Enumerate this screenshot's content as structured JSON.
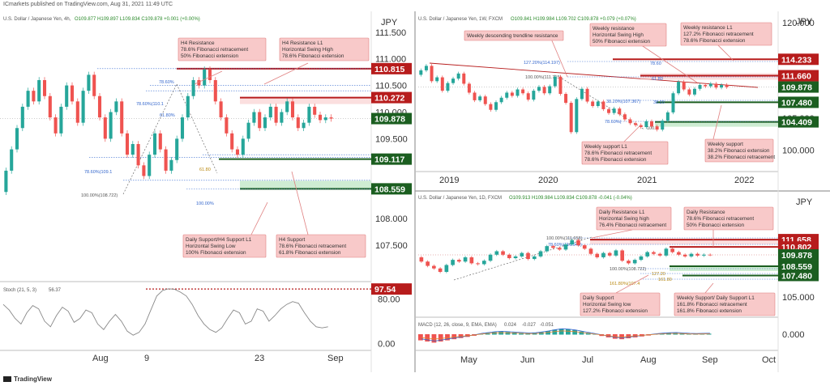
{
  "header": {
    "publisher": "ICmarkets published on TradingView.com, Aug 31, 2021 11:49 UTC"
  },
  "footer": {
    "brand": "TradingView"
  },
  "colors": {
    "resistance": "#b71c1c",
    "support": "#1b5e20",
    "price": "#1b5e20",
    "bull": "#26a69a",
    "bear": "#ef5350",
    "note_bg": "#f8c9c9",
    "note_border": "#e08080",
    "fib_line": "#3d6fd1"
  },
  "chart_data": [
    {
      "id": "h4",
      "type": "line",
      "title": "U.S. Dollar / Japanese Yen, 4h,",
      "ohlc": "O109.877  H109.897  L109.834  C109.878  +0.001 (+0.00%)",
      "currency": "JPY",
      "y_ticks": [
        "111.500",
        "111.000",
        "110.500",
        "110.000",
        "109.500",
        "108.000",
        "107.500"
      ],
      "x_ticks": [
        "Aug",
        "9",
        "23",
        "Sep"
      ],
      "ylim": [
        107.0,
        111.8
      ],
      "price": {
        "value": 109.878,
        "label": "109.878"
      },
      "levels": [
        {
          "value": 110.815,
          "label": "110.815",
          "kind": "resistance"
        },
        {
          "value": 110.272,
          "label": "110.272",
          "kind": "resistance"
        },
        {
          "value": 109.117,
          "label": "109.117",
          "kind": "support"
        },
        {
          "value": 108.559,
          "label": "108.559",
          "kind": "support"
        }
      ],
      "fib_labels": [
        "78.60%",
        "78.60%(110.1",
        "61.80%",
        "78.60%(109.1",
        "61.80",
        "100.00%(108.722)",
        "100.00%"
      ],
      "annotations": [
        {
          "lines": [
            "H4 Resistance",
            "78.6% Fibonacci retracement",
            "50% Fibonacci extension"
          ]
        },
        {
          "lines": [
            "H4 Resistance L1",
            "Horizontal Swing High",
            "78.6% Fibonacci extension"
          ]
        },
        {
          "lines": [
            "Daily Support/H4 Support L1",
            "Horizontal Swing Low",
            "100% Fibonacci extension"
          ]
        },
        {
          "lines": [
            "H4 Support",
            "78.6% Fibonacci retracement",
            "61.8% Fibonacci extension"
          ]
        }
      ],
      "close_series": [
        108.9,
        109.3,
        109.7,
        110.1,
        110.4,
        110.2,
        110.6,
        110.3,
        109.9,
        109.6,
        110.1,
        110.5,
        110.2,
        109.8,
        110.4,
        110.7,
        110.3,
        109.9,
        109.5,
        110.0,
        110.2,
        109.6,
        109.2,
        109.4,
        109.0,
        108.8,
        109.2,
        109.6,
        109.3,
        108.9,
        109.1,
        109.5,
        109.9,
        110.3,
        110.6,
        110.5,
        110.8,
        110.6,
        110.2,
        109.9,
        109.6,
        109.3,
        109.2,
        109.5,
        109.8,
        110.0,
        109.7,
        109.9,
        110.1,
        109.8,
        110.0,
        110.2,
        109.9,
        109.7,
        109.8,
        110.1,
        109.95,
        109.85,
        109.9,
        109.878
      ]
    },
    {
      "id": "stoch",
      "type": "line",
      "title": "Stoch (21, 5, 3)",
      "value_label": "56.37",
      "y_ticks": [
        "80.00",
        "0.00"
      ],
      "level": {
        "value": 97.54,
        "label": "97.54"
      },
      "ylim": [
        -5,
        105
      ],
      "values": [
        70,
        60,
        45,
        35,
        55,
        68,
        62,
        40,
        30,
        50,
        65,
        58,
        38,
        45,
        60,
        55,
        35,
        25,
        40,
        52,
        40,
        22,
        15,
        20,
        35,
        60,
        85,
        95,
        98,
        97,
        92,
        85,
        70,
        50,
        35,
        25,
        20,
        28,
        45,
        60,
        55,
        35,
        40,
        62,
        58,
        40,
        50,
        62,
        70,
        75,
        72,
        55,
        40,
        30,
        28,
        30
      ]
    },
    {
      "id": "weekly",
      "type": "line",
      "title": "U.S. Dollar / Japanese Yen, 1W, FXCM",
      "ohlc": "O109.841  H109.984  L109.702  C109.878  +0.079 (+0.07%)",
      "currency": "JPY",
      "y_ticks": [
        "120.000",
        "110.000",
        "105.000",
        "100.000"
      ],
      "x_ticks": [
        "2019",
        "2020",
        "2021",
        "2022"
      ],
      "ylim": [
        97.5,
        121.0
      ],
      "price": {
        "value": 109.878,
        "label": "109.878"
      },
      "levels": [
        {
          "value": 114.233,
          "label": "114.233",
          "kind": "resistance"
        },
        {
          "value": 111.66,
          "label": "111.660",
          "kind": "resistance"
        },
        {
          "value": 107.48,
          "label": "107.480",
          "kind": "support"
        },
        {
          "value": 104.409,
          "label": "104.409",
          "kind": "support"
        }
      ],
      "fib_labels": [
        "127.20%(114.197)",
        "100.00%(111.715)",
        "78.60",
        "61.80",
        "38.20%(107.367)",
        "38.20",
        "78.60%(",
        "100.0"
      ],
      "annotations": [
        {
          "lines": [
            "Weekly descending trendline resistance"
          ]
        },
        {
          "lines": [
            "Weekly resistance",
            "Horizontal Swing High",
            "50% Fibonacci extension"
          ]
        },
        {
          "lines": [
            "Weekly resistance L1",
            "127.2% Fibonacci retracement",
            "78.6% Fibonacci extension"
          ]
        },
        {
          "lines": [
            "Weekly support L1",
            "78.6% Fibonacci retracement",
            "78.6% Fibonacci extension"
          ]
        },
        {
          "lines": [
            "Weekly support",
            "38.2% Fibonacci extension",
            "38.2% Fibonacci retracement"
          ]
        }
      ],
      "close_series": [
        112.5,
        113.2,
        110.8,
        111.4,
        109.3,
        110.5,
        111.2,
        112.0,
        110.4,
        109.0,
        107.8,
        108.4,
        107.2,
        106.3,
        107.5,
        108.2,
        109.0,
        108.5,
        109.5,
        108.9,
        107.9,
        109.3,
        109.9,
        108.9,
        110.0,
        111.5,
        108.8,
        107.4,
        102.8,
        108.0,
        109.6,
        107.6,
        106.9,
        107.6,
        106.4,
        105.8,
        106.5,
        105.6,
        104.8,
        104.2,
        103.9,
        103.6,
        104.5,
        103.7,
        103.2,
        104.6,
        105.9,
        108.9,
        110.7,
        109.5,
        108.7,
        109.6,
        110.2,
        110.0,
        110.4,
        109.8,
        110.2,
        109.878
      ]
    },
    {
      "id": "daily",
      "type": "line",
      "title": "U.S. Dollar / Japanese Yen, 1D, FXCM",
      "ohlc": "O109.913  H109.984  L109.834  C109.878  -0.041 (-0.04%)",
      "currency": "JPY",
      "y_ticks": [
        "110.000",
        "105.000"
      ],
      "x_ticks": [
        "May",
        "Jun",
        "Jul",
        "Aug",
        "Sep",
        "Oct"
      ],
      "ylim": [
        103.0,
        116.0
      ],
      "price": {
        "value": 109.878,
        "label": "109.878"
      },
      "levels": [
        {
          "value": 111.658,
          "label": "111.658",
          "kind": "resistance"
        },
        {
          "value": 110.802,
          "label": "110.802",
          "kind": "resistance"
        },
        {
          "value": 108.559,
          "label": "108.559",
          "kind": "support"
        },
        {
          "value": 107.48,
          "label": "107.480",
          "kind": "support"
        }
      ],
      "fib_labels": [
        "100.00%(111.658)",
        "78.60%(110.946)",
        "100.00%(108.722)",
        "127.20",
        "161.80",
        "161.80%(107.4"
      ],
      "annotations": [
        {
          "lines": [
            "Daily Resistance L1",
            "Horizontal Swing high",
            "76.4% Fibonacci retracement"
          ]
        },
        {
          "lines": [
            "Daily Resistance",
            "78.6% Fibonacci retracement",
            "50% Fibonacci extension"
          ]
        },
        {
          "lines": [
            "Daily Support",
            "Horizontal Swing low",
            "127.2% Fibonacci extension"
          ]
        },
        {
          "lines": [
            "Weekly Support/ Daily Support L1",
            "161.8% Fibonacci retracement",
            "161.8% Fibonacci extension"
          ]
        }
      ],
      "close_series": [
        109.1,
        108.6,
        108.3,
        107.9,
        108.7,
        109.3,
        109.1,
        109.6,
        108.9,
        108.8,
        109.2,
        109.9,
        110.3,
        109.9,
        109.5,
        109.7,
        110.1,
        109.4,
        109.7,
        110.3,
        110.9,
        110.7,
        110.5,
        111.1,
        111.6,
        111.0,
        110.6,
        110.0,
        109.6,
        110.1,
        109.8,
        110.4,
        109.2,
        108.9,
        109.3,
        109.7,
        110.2,
        110.0,
        109.8,
        110.6,
        110.2,
        109.9,
        109.7,
        110.0,
        109.8,
        109.9,
        109.878
      ]
    },
    {
      "id": "macd",
      "type": "bar",
      "title": "MACD (12, 26, close, 9, EMA, EMA)",
      "value_labels": [
        "0.024",
        "-0.027",
        "-0.051"
      ],
      "y_ticks": [
        "0.000"
      ],
      "ylim": [
        -0.6,
        0.6
      ],
      "hist": [
        -0.25,
        -0.3,
        -0.35,
        -0.3,
        -0.25,
        -0.2,
        -0.15,
        -0.1,
        -0.05,
        0.02,
        0.06,
        0.1,
        0.12,
        0.1,
        0.08,
        0.06,
        0.04,
        0.05,
        0.09,
        0.14,
        0.2,
        0.24,
        0.22,
        0.18,
        0.12,
        0.06,
        0.0,
        -0.06,
        -0.12,
        -0.18,
        -0.2,
        -0.16,
        -0.12,
        -0.08,
        -0.04,
        0.0,
        0.03,
        0.05,
        0.06,
        0.04,
        0.02,
        0.01,
        0.02,
        0.024
      ]
    }
  ]
}
